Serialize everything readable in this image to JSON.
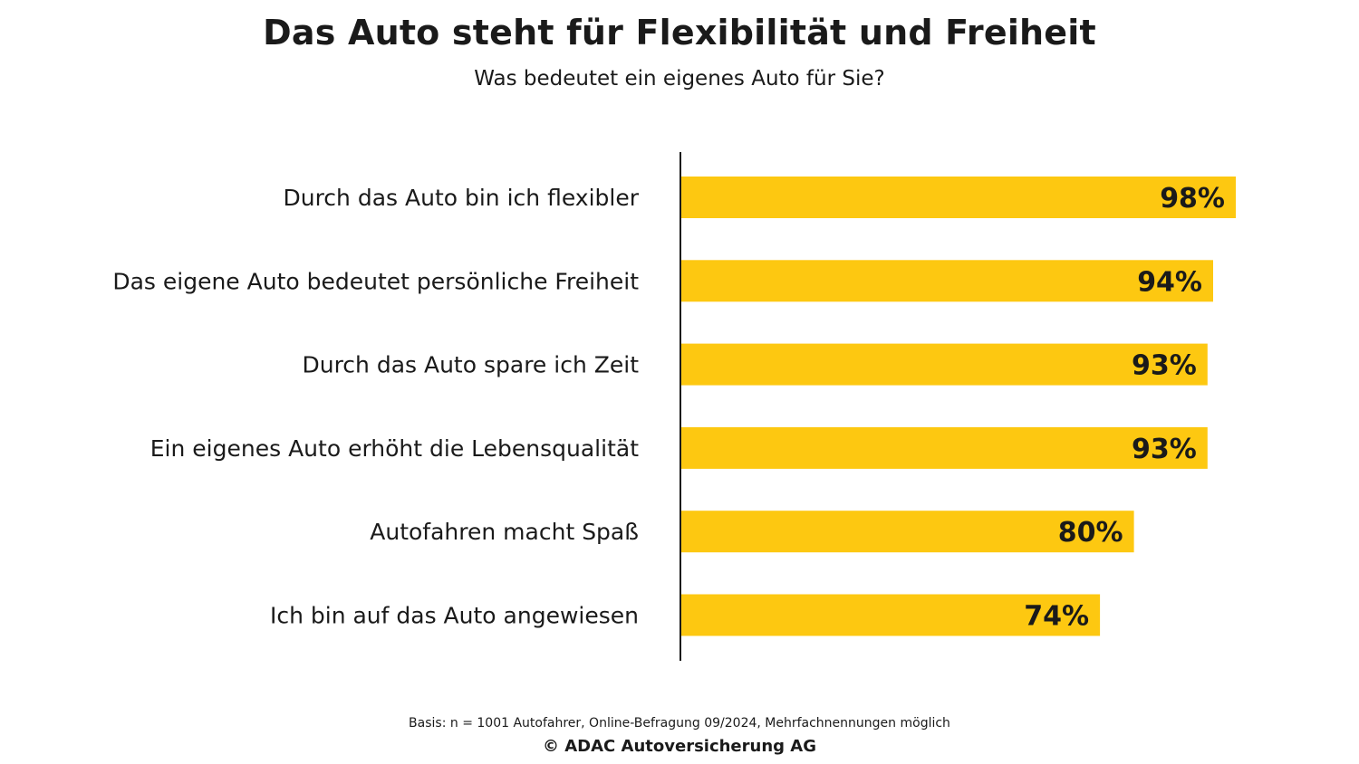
{
  "header": {
    "title": "Das Auto steht für Flexibilität und Freiheit",
    "subtitle": "Was bedeutet ein eigenes Auto für Sie?"
  },
  "chart_data": {
    "type": "bar",
    "orientation": "horizontal",
    "title": "Das Auto steht für Flexibilität und Freiheit",
    "subtitle": "Was bedeutet ein eigenes Auto für Sie?",
    "categories": [
      "Durch das Auto bin ich flexibler",
      "Das eigene Auto bedeutet persönliche Freiheit",
      "Durch das Auto spare ich Zeit",
      "Ein eigenes Auto erhöht die Lebensqualität",
      "Autofahren macht Spaß",
      "Ich bin auf das Auto angewiesen"
    ],
    "values": [
      98,
      94,
      93,
      93,
      80,
      74
    ],
    "value_labels": [
      "98%",
      "94%",
      "93%",
      "93%",
      "80%",
      "74%"
    ],
    "unit": "%",
    "xlim": [
      0,
      100
    ],
    "grid": false,
    "xlabel": "",
    "ylabel": "",
    "colors": {
      "bar": "#FDC811",
      "text": "#1a1a1a",
      "axis": "#1a1a1a"
    }
  },
  "footer": {
    "basis": "Basis: n = 1001 Autofahrer, Online-Befragung 09/2024, Mehrfachnennungen möglich",
    "copyright": "© ADAC Autoversicherung AG"
  }
}
